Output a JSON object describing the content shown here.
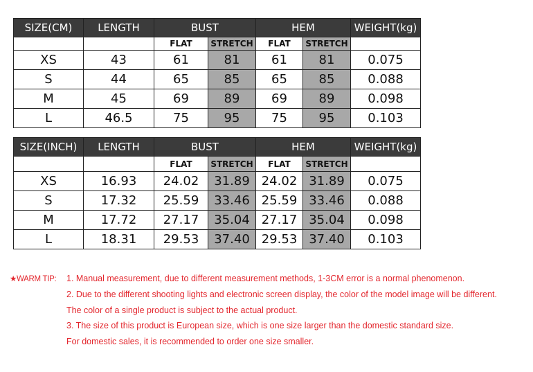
{
  "tables": [
    {
      "headers": [
        "SIZE(CM)",
        "LENGTH",
        "BUST",
        "HEM",
        "WEIGHT(kg)"
      ],
      "subheaders": [
        "FLAT",
        "STRETCH",
        "FLAT",
        "STRETCH"
      ],
      "rows": [
        [
          "XS",
          "43",
          "61",
          "81",
          "61",
          "81",
          "0.075"
        ],
        [
          "S",
          "44",
          "65",
          "85",
          "65",
          "85",
          "0.088"
        ],
        [
          "M",
          "45",
          "69",
          "89",
          "69",
          "89",
          "0.098"
        ],
        [
          "L",
          "46.5",
          "75",
          "95",
          "75",
          "95",
          "0.103"
        ]
      ]
    },
    {
      "headers": [
        "SIZE(INCH)",
        "LENGTH",
        "BUST",
        "HEM",
        "WEIGHT(kg)"
      ],
      "subheaders": [
        "FLAT",
        "STRETCH",
        "FLAT",
        "STRETCH"
      ],
      "rows": [
        [
          "XS",
          "16.93",
          "24.02",
          "31.89",
          "24.02",
          "31.89",
          "0.075"
        ],
        [
          "S",
          "17.32",
          "25.59",
          "33.46",
          "25.59",
          "33.46",
          "0.088"
        ],
        [
          "M",
          "17.72",
          "27.17",
          "35.04",
          "27.17",
          "35.04",
          "0.098"
        ],
        [
          "L",
          "18.31",
          "29.53",
          "37.40",
          "29.53",
          "37.40",
          "0.103"
        ]
      ]
    }
  ],
  "colors": {
    "header_bg": "#3b3b3b",
    "stretch_bg": "#a8a8a8",
    "tip_red": "#e3262d"
  },
  "tips": {
    "label": "★WARM TIP:",
    "lines": [
      "1. Manual measurement, due to different measurement methods, 1-3CM error is a normal phenomenon.",
      "2. Due to the different shooting lights and electronic screen display, the  color of the model image will be different.",
      "The color of a single product is subject to the actual product.",
      "3. The size of this product is European size, which is one size larger than the domestic standard size.",
      "For domestic sales, it is recommended to order one size smaller."
    ]
  }
}
